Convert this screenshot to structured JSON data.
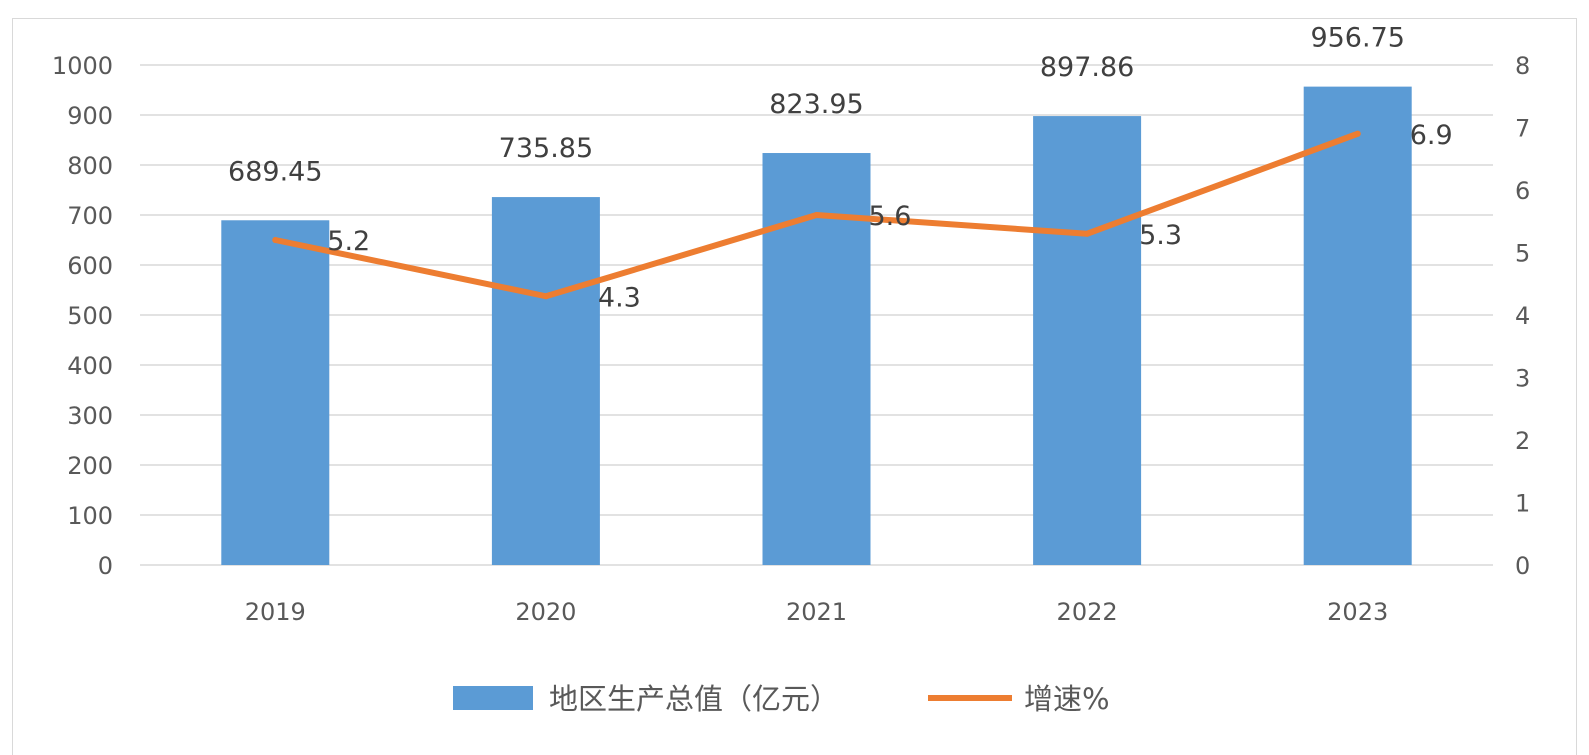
{
  "chart_data": {
    "type": "bar",
    "categories": [
      "2019",
      "2020",
      "2021",
      "2022",
      "2023"
    ],
    "series": [
      {
        "name": "地区生产总值（亿元）",
        "type": "bar",
        "axis": "left",
        "color": "#5b9bd5",
        "values": [
          689.45,
          735.85,
          823.95,
          897.86,
          956.75
        ],
        "labels": [
          "689.45",
          "735.85",
          "823.95",
          "897.86",
          "956.75"
        ]
      },
      {
        "name": "增速%",
        "type": "line",
        "axis": "right",
        "color": "#ed7d31",
        "values": [
          5.2,
          4.3,
          5.6,
          5.3,
          6.9
        ],
        "labels": [
          "5.2",
          "4.3",
          "5.6",
          "5.3",
          "6.9"
        ]
      }
    ],
    "y_left": {
      "ylim": [
        0,
        1000
      ],
      "ticks": [
        "0",
        "100",
        "200",
        "300",
        "400",
        "500",
        "600",
        "700",
        "800",
        "900",
        "1000"
      ]
    },
    "y_right": {
      "ylim": [
        0,
        8
      ],
      "ticks": [
        "0",
        "1",
        "2",
        "3",
        "4",
        "5",
        "6",
        "7",
        "8"
      ]
    },
    "grid": true,
    "legend_position": "bottom"
  }
}
